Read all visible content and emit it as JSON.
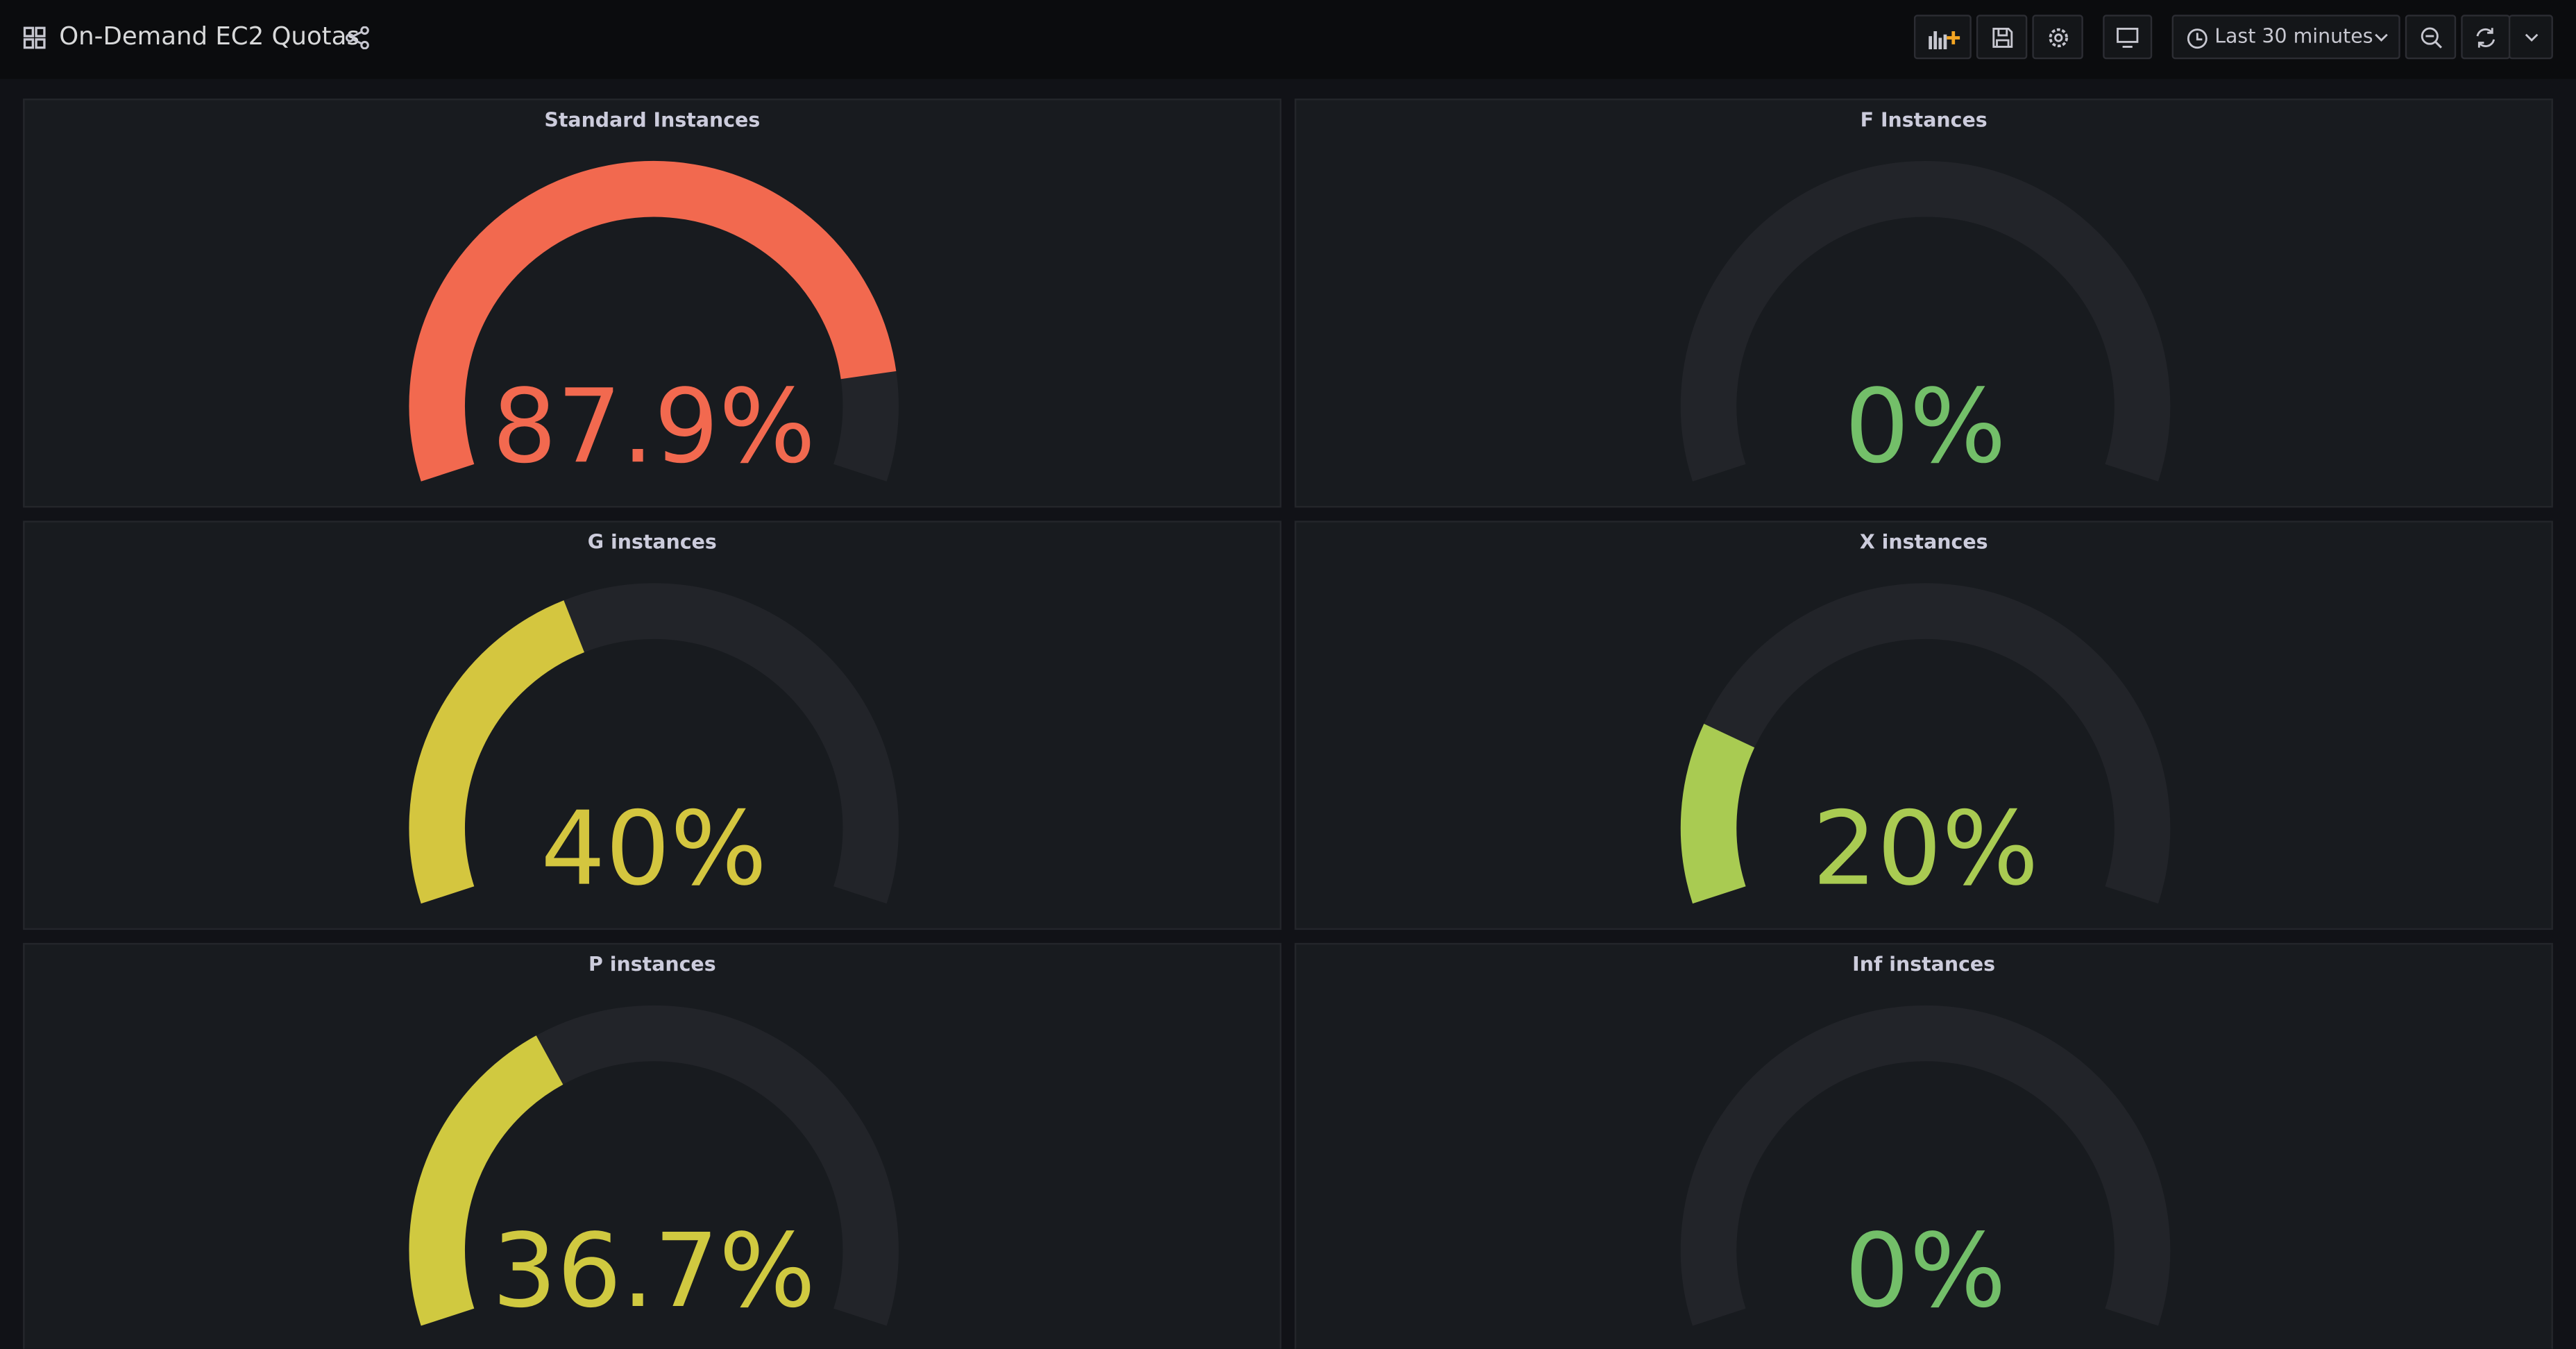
{
  "header": {
    "title": "On-Demand EC2 Quotas"
  },
  "toolbar": {
    "time_range": "Last 30 minutes"
  },
  "gauge_range": [
    0,
    100
  ],
  "panels": [
    {
      "title": "Standard Instances",
      "value": 87.9,
      "value_label": "87.9%",
      "color": "#f2694f"
    },
    {
      "title": "F Instances",
      "value": 0,
      "value_label": "0%",
      "color": "#73bf69"
    },
    {
      "title": "G instances",
      "value": 40,
      "value_label": "40%",
      "color": "#d4c63f"
    },
    {
      "title": "X instances",
      "value": 20,
      "value_label": "20%",
      "color": "#a9cb52"
    },
    {
      "title": "P instances",
      "value": 36.7,
      "value_label": "36.7%",
      "color": "#d0c940"
    },
    {
      "title": "Inf instances",
      "value": 0,
      "value_label": "0%",
      "color": "#73bf69"
    }
  ]
}
